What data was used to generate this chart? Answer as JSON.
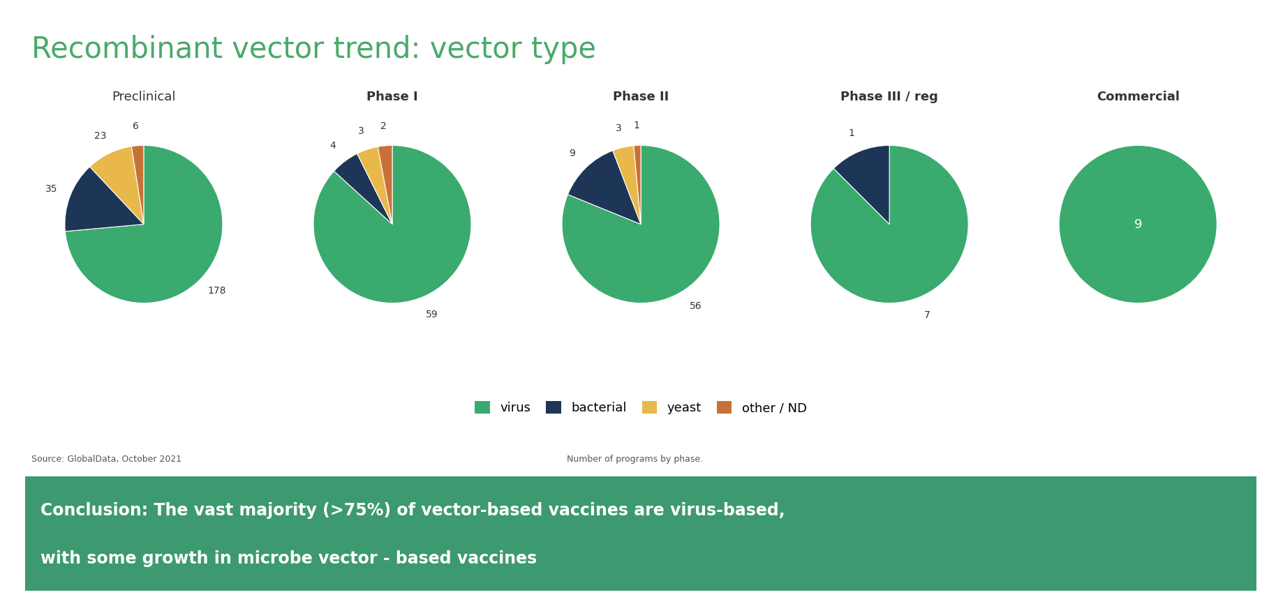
{
  "title": "Recombinant vector trend: vector type",
  "title_color": "#4aaa6a",
  "background_color": "#ffffff",
  "pies": [
    {
      "label": "Preclinical",
      "values": [
        178,
        35,
        23,
        6
      ],
      "label_bold": false
    },
    {
      "label": "Phase I",
      "values": [
        59,
        4,
        3,
        2
      ],
      "label_bold": true
    },
    {
      "label": "Phase II",
      "values": [
        56,
        9,
        3,
        1
      ],
      "label_bold": true
    },
    {
      "label": "Phase III / reg",
      "values": [
        7,
        1,
        0,
        0
      ],
      "label_bold": true
    },
    {
      "label": "Commercial",
      "values": [
        9,
        0,
        0,
        0
      ],
      "label_bold": true
    }
  ],
  "categories": [
    "virus",
    "bacterial",
    "yeast",
    "other / ND"
  ],
  "colors": [
    "#3aaa6e",
    "#1d3557",
    "#e8b84b",
    "#c87137"
  ],
  "legend_labels": [
    "virus",
    "bacterial",
    "yeast",
    "other / ND"
  ],
  "source_text": "Source: GlobalData, October 2021",
  "programs_text": "Number of programs by phase.",
  "conclusion_bg": "#3d9970",
  "conclusion_text_line1": "Conclusion: The vast majority (>75%) of vector-based vaccines are virus-based,",
  "conclusion_text_line2": "with some growth in microbe vector - based vaccines",
  "conclusion_text_color": "#ffffff"
}
